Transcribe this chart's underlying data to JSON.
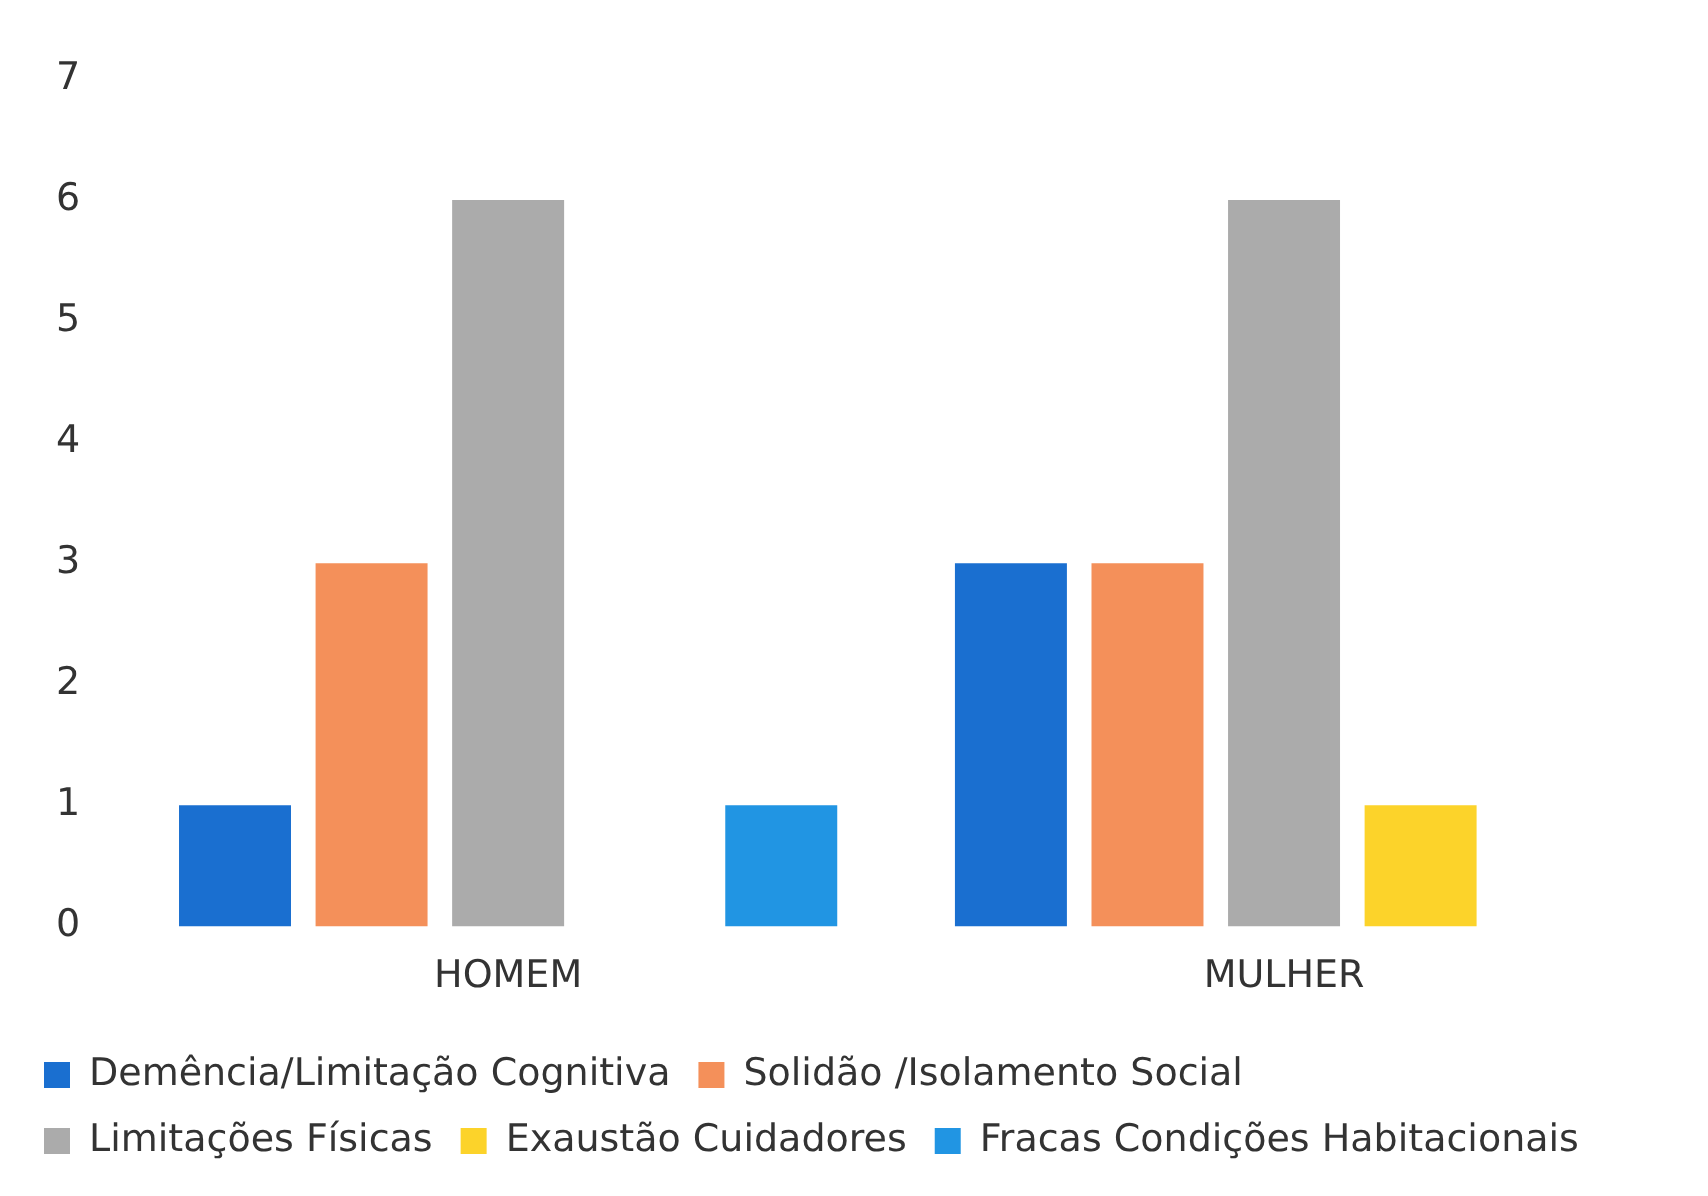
{
  "chart_data": {
    "type": "bar",
    "categories": [
      "HOMEM",
      "MULHER"
    ],
    "series": [
      {
        "name": "Demência/Limitação Cognitiva",
        "color": "#1a6fd0",
        "values": [
          1,
          3
        ]
      },
      {
        "name": "Solidão /Isolamento Social",
        "color": "#f4905a",
        "values": [
          3,
          3
        ]
      },
      {
        "name": "Limitações Físicas",
        "color": "#ababab",
        "values": [
          6,
          6
        ]
      },
      {
        "name": "Exaustão Cuidadores",
        "color": "#fcd32a",
        "values": [
          0,
          1
        ]
      },
      {
        "name": "Fracas Condições Habitacionais",
        "color": "#2195e3",
        "values": [
          1,
          0
        ]
      }
    ],
    "ylim": [
      0,
      7
    ],
    "yticks": [
      0,
      1,
      2,
      3,
      4,
      5,
      6,
      7
    ],
    "grid": false,
    "legend": "bottom"
  }
}
